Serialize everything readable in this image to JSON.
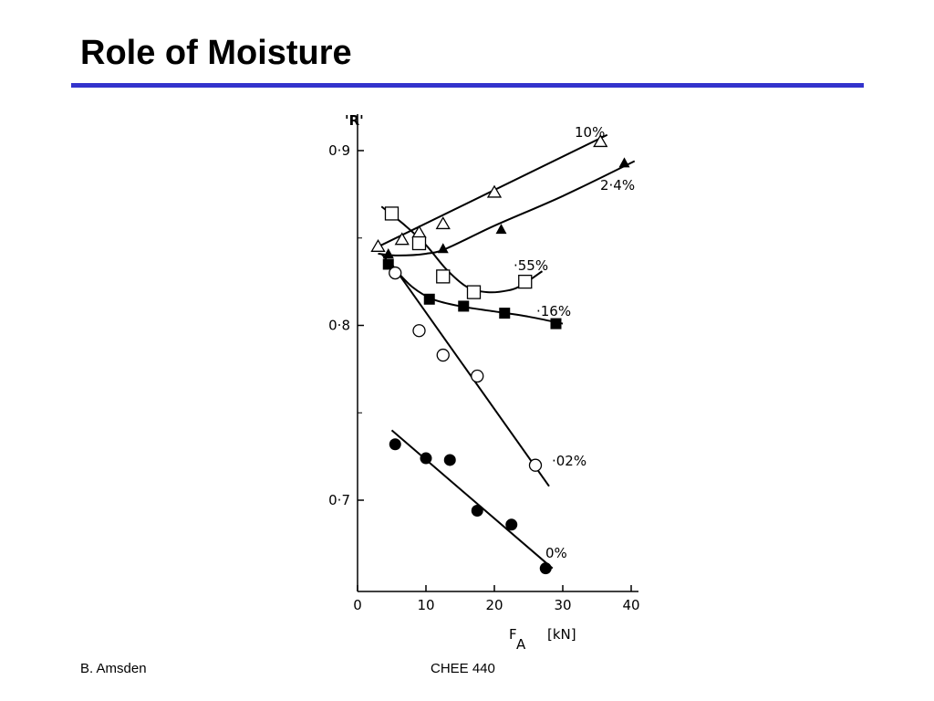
{
  "slide": {
    "title": "Role of Moisture",
    "accent_color": "#3333cc",
    "footer_left": "B. Amsden",
    "footer_center": "CHEE 440"
  },
  "chart_data": {
    "type": "scatter",
    "title": "",
    "xlabel": "F",
    "xlabel_sub": "A",
    "xunit": "[kN]",
    "ylabel": "'R'",
    "xlim": [
      0,
      40
    ],
    "ylim": [
      0.65,
      0.92
    ],
    "x_ticks": [
      0,
      10,
      20,
      30,
      40
    ],
    "x_tick_labels": [
      "0",
      "10",
      "20",
      "30",
      "40"
    ],
    "y_ticks": [
      0.7,
      0.8,
      0.9
    ],
    "y_tick_labels": [
      "0·7",
      "0·8",
      "0·9"
    ],
    "grid": false,
    "series": [
      {
        "name": "10%",
        "marker": "open-triangle",
        "points": [
          [
            3,
            0.845
          ],
          [
            6.5,
            0.849
          ],
          [
            9,
            0.853
          ],
          [
            12.5,
            0.858
          ],
          [
            20,
            0.876
          ],
          [
            35.5,
            0.905
          ]
        ],
        "curve": [
          [
            3,
            0.845
          ],
          [
            36.5,
            0.909
          ]
        ]
      },
      {
        "name": "2·4%",
        "marker": "filled-triangle",
        "points": [
          [
            4.5,
            0.841
          ],
          [
            12.5,
            0.844
          ],
          [
            21,
            0.855
          ],
          [
            39,
            0.893
          ]
        ],
        "curve": [
          [
            3,
            0.841
          ],
          [
            6,
            0.84
          ],
          [
            10,
            0.841
          ],
          [
            13,
            0.844
          ],
          [
            20,
            0.857
          ],
          [
            30,
            0.874
          ],
          [
            40.5,
            0.894
          ]
        ]
      },
      {
        "name": "·55%",
        "marker": "open-square",
        "points": [
          [
            5,
            0.864
          ],
          [
            9,
            0.847
          ],
          [
            12.5,
            0.828
          ],
          [
            17,
            0.819
          ],
          [
            24.5,
            0.825
          ]
        ],
        "curve": [
          [
            3.5,
            0.868
          ],
          [
            7,
            0.857
          ],
          [
            10,
            0.846
          ],
          [
            13,
            0.832
          ],
          [
            16,
            0.822
          ],
          [
            19,
            0.819
          ],
          [
            22,
            0.82
          ],
          [
            24,
            0.823
          ],
          [
            27,
            0.831
          ]
        ]
      },
      {
        "name": "·16%",
        "marker": "filled-square",
        "points": [
          [
            4.5,
            0.835
          ],
          [
            10.5,
            0.815
          ],
          [
            15.5,
            0.811
          ],
          [
            21.5,
            0.807
          ],
          [
            29,
            0.801
          ]
        ],
        "curve": [
          [
            3.5,
            0.841
          ],
          [
            5.5,
            0.832
          ],
          [
            8,
            0.822
          ],
          [
            11,
            0.815
          ],
          [
            15,
            0.811
          ],
          [
            20,
            0.808
          ],
          [
            25,
            0.805
          ],
          [
            30,
            0.801
          ]
        ]
      },
      {
        "name": "·02%",
        "marker": "open-circle",
        "points": [
          [
            5.5,
            0.83
          ],
          [
            9,
            0.797
          ],
          [
            12.5,
            0.783
          ],
          [
            17.5,
            0.771
          ],
          [
            26,
            0.72
          ]
        ],
        "curve": [
          [
            5,
            0.835
          ],
          [
            28,
            0.708
          ]
        ]
      },
      {
        "name": "0%",
        "marker": "filled-circle",
        "points": [
          [
            5.5,
            0.732
          ],
          [
            10,
            0.724
          ],
          [
            13.5,
            0.723
          ],
          [
            17.5,
            0.694
          ],
          [
            22.5,
            0.686
          ],
          [
            27.5,
            0.661
          ]
        ],
        "curve": [
          [
            5,
            0.74
          ],
          [
            28.5,
            0.661
          ]
        ]
      }
    ]
  }
}
